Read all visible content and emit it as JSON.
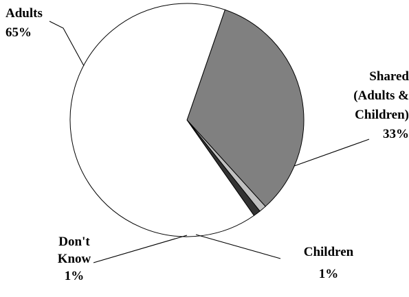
{
  "chart_data": {
    "type": "pie",
    "title": "",
    "slices": [
      {
        "name": "Adults",
        "value": 65,
        "label_lines": [
          "Adults",
          "65%"
        ],
        "color": "#ffffff"
      },
      {
        "name": "Shared (Adults & Children)",
        "value": 33,
        "label_lines": [
          "Shared",
          "(Adults &",
          "Children)",
          "33%"
        ],
        "color": "#808080"
      },
      {
        "name": "Children",
        "value": 1,
        "label_lines": [
          "Children",
          "1%"
        ],
        "color": "#c0c0c0"
      },
      {
        "name": "Don't Know",
        "value": 1,
        "label_lines": [
          "Don't",
          "Know",
          "1%"
        ],
        "color": "#333333"
      }
    ],
    "legend": "none",
    "label_style": "callouts with leader lines"
  }
}
